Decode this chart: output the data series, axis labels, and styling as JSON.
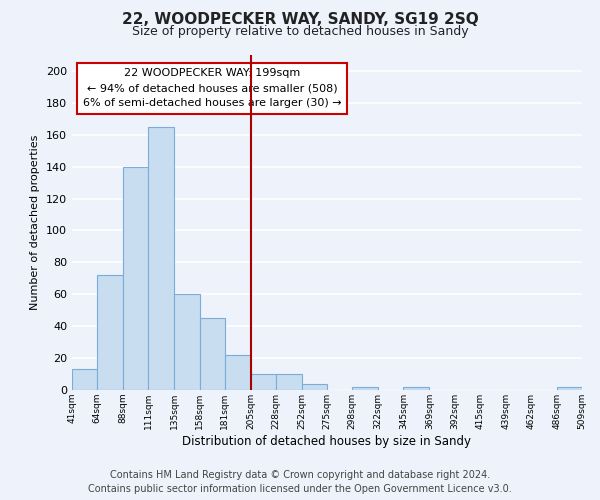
{
  "title": "22, WOODPECKER WAY, SANDY, SG19 2SQ",
  "subtitle": "Size of property relative to detached houses in Sandy",
  "xlabel": "Distribution of detached houses by size in Sandy",
  "ylabel": "Number of detached properties",
  "bar_color": "#c8ddf0",
  "bar_edge_color": "#7aadda",
  "vline_x": 205,
  "vline_color": "#aa0000",
  "annotation_title": "22 WOODPECKER WAY: 199sqm",
  "annotation_line1": "← 94% of detached houses are smaller (508)",
  "annotation_line2": "6% of semi-detached houses are larger (30) →",
  "annotation_box_color": "#ffffff",
  "annotation_box_edge": "#cc0000",
  "bin_edges": [
    41,
    64,
    88,
    111,
    135,
    158,
    181,
    205,
    228,
    252,
    275,
    298,
    322,
    345,
    369,
    392,
    415,
    439,
    462,
    486,
    509
  ],
  "bin_counts": [
    13,
    72,
    140,
    165,
    60,
    45,
    22,
    10,
    10,
    4,
    0,
    2,
    0,
    2,
    0,
    0,
    0,
    0,
    0,
    2
  ],
  "ylim": [
    0,
    210
  ],
  "yticks": [
    0,
    20,
    40,
    60,
    80,
    100,
    120,
    140,
    160,
    180,
    200
  ],
  "footer_line1": "Contains HM Land Registry data © Crown copyright and database right 2024.",
  "footer_line2": "Contains public sector information licensed under the Open Government Licence v3.0.",
  "background_color": "#edf2fb",
  "grid_color": "#ffffff",
  "title_fontsize": 11,
  "subtitle_fontsize": 9,
  "footer_fontsize": 7
}
